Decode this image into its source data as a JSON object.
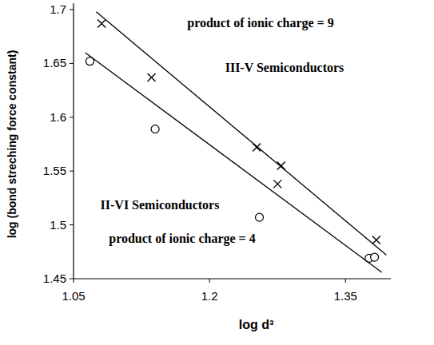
{
  "chart_data": {
    "type": "scatter",
    "x_label": "log d³",
    "y_label": "log (bond streching force constant)",
    "xlim": [
      1.05,
      1.4
    ],
    "xticks": [
      1.05,
      1.2,
      1.35
    ],
    "ylim": [
      1.45,
      1.7
    ],
    "yticks": [
      1.45,
      1.5,
      1.55,
      1.6,
      1.65,
      1.7
    ],
    "grid": false,
    "series": [
      {
        "type": "scatter",
        "marker": "x",
        "color": "#000000",
        "x": [
          1.081,
          1.136,
          1.252,
          1.279,
          1.275,
          1.384
        ],
        "values": [
          1.687,
          1.637,
          1.572,
          1.555,
          1.538,
          1.486
        ]
      },
      {
        "type": "scatter",
        "marker": "circle",
        "color": "#000000",
        "x": [
          1.068,
          1.14,
          1.255,
          1.376,
          1.382
        ],
        "values": [
          1.652,
          1.589,
          1.507,
          1.469,
          1.47
        ]
      },
      {
        "type": "line",
        "line_style": "solid",
        "color": "#000000",
        "x": [
          1.075,
          1.395
        ],
        "values": [
          1.698,
          1.472
        ]
      },
      {
        "type": "line",
        "line_style": "solid",
        "color": "#000000",
        "x": [
          1.063,
          1.39
        ],
        "values": [
          1.66,
          1.456
        ]
      }
    ],
    "annotations": [
      {
        "text": "product of ionic charge = 9"
      },
      {
        "text": "III-V Semiconductors"
      },
      {
        "text": "II-VI Semiconductors"
      },
      {
        "text": "product of ionic charge = 4"
      }
    ]
  }
}
